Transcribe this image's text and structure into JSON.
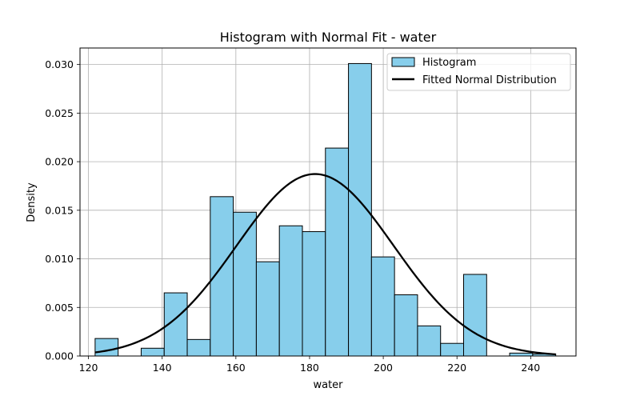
{
  "chart_data": {
    "type": "bar",
    "title": "Histogram with Normal Fit - water",
    "xlabel": "water",
    "ylabel": "Density",
    "xlim": [
      117.7,
      252.3
    ],
    "ylim": [
      0,
      0.0317
    ],
    "xticks": [
      120,
      140,
      160,
      180,
      200,
      220,
      240
    ],
    "xtick_labels": [
      "120",
      "140",
      "160",
      "180",
      "200",
      "220",
      "240"
    ],
    "yticks": [
      0,
      0.005,
      0.01,
      0.015,
      0.02,
      0.025,
      0.03
    ],
    "ytick_labels": [
      "0.000",
      "0.005",
      "0.010",
      "0.015",
      "0.020",
      "0.025",
      "0.030"
    ],
    "grid": true,
    "legend_position": "top-right",
    "bin_edges": [
      121.8,
      128.05,
      134.3,
      140.55,
      146.8,
      153.05,
      159.3,
      165.55,
      171.8,
      178.05,
      184.3,
      190.55,
      196.8,
      203.05,
      209.3,
      215.55,
      221.8,
      228.05,
      234.3,
      240.55,
      246.8
    ],
    "series": [
      {
        "name": "Histogram",
        "kind": "histogram",
        "values": [
          0.0018,
          0.0,
          0.0008,
          0.0065,
          0.0017,
          0.0164,
          0.0148,
          0.0097,
          0.0134,
          0.0128,
          0.0214,
          0.0301,
          0.0102,
          0.0063,
          0.0031,
          0.0013,
          0.0084,
          0.0,
          0.0003,
          0.0002
        ],
        "color": "#87ceeb",
        "edge_color": "#000000"
      },
      {
        "name": "Fitted Normal Distribution",
        "kind": "line",
        "distribution": "normal",
        "mean": 181.5,
        "std": 21.3,
        "x_range": [
          121.8,
          246.8
        ],
        "color": "#000000"
      }
    ]
  }
}
